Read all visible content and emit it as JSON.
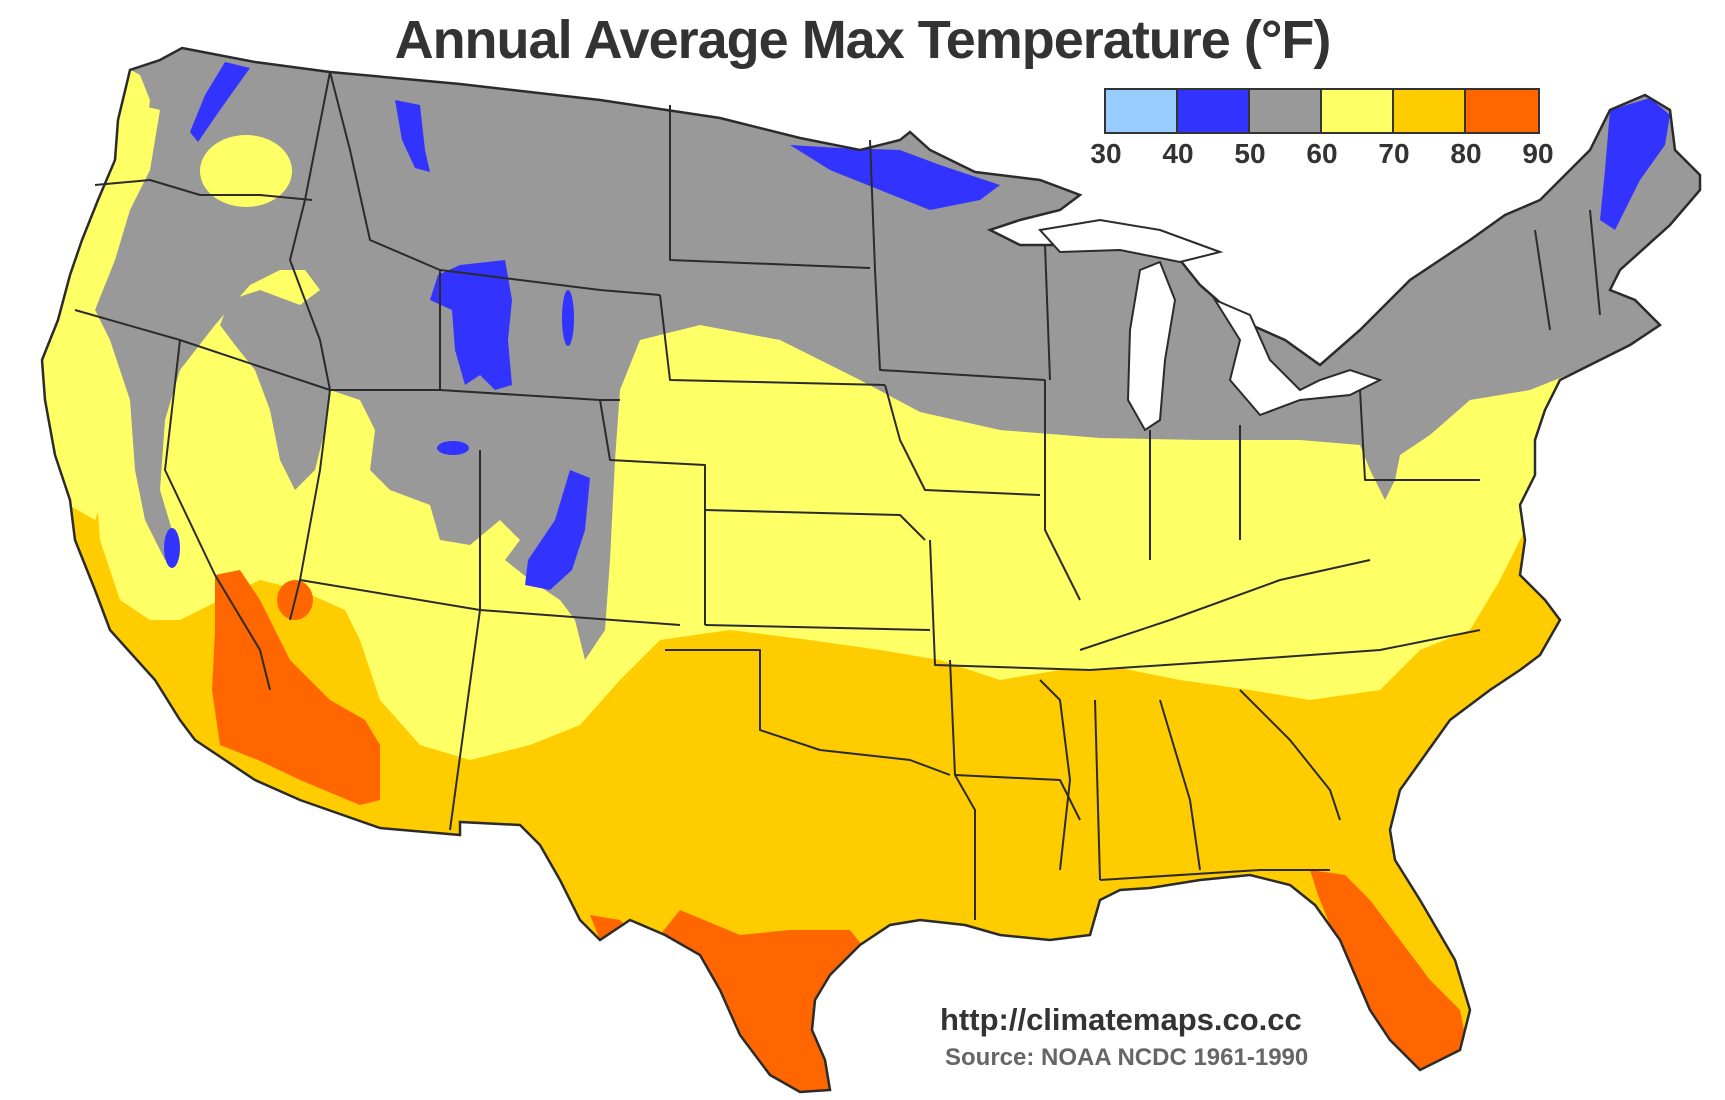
{
  "title": "Annual Average Max Temperature (°F)",
  "legend": {
    "ticks": [
      "30",
      "40",
      "50",
      "60",
      "70",
      "80",
      "90"
    ],
    "bins": [
      {
        "range": "30-40",
        "color": "#99ccff"
      },
      {
        "range": "40-50",
        "color": "#3333ff"
      },
      {
        "range": "50-60",
        "color": "#999999"
      },
      {
        "range": "60-70",
        "color": "#ffff66"
      },
      {
        "range": "70-80",
        "color": "#ffcc00"
      },
      {
        "range": "80-90",
        "color": "#ff6600"
      }
    ]
  },
  "credit": {
    "url": "http://climatemaps.co.cc",
    "source": "Source: NOAA NCDC 1961-1990"
  },
  "colors": {
    "outline": "#2b2b2b",
    "background": "#ffffff",
    "text": "#333333"
  }
}
